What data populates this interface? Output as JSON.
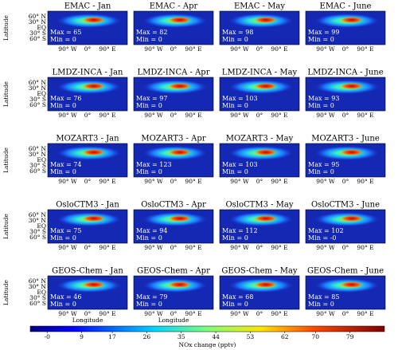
{
  "panels": [
    {
      "title": "EMAC - Jan",
      "max_label": "Max = 65",
      "min_label": "Min = 0"
    },
    {
      "title": "EMAC - Apr",
      "max_label": "Max = 82",
      "min_label": "Min = 0"
    },
    {
      "title": "EMAC - May",
      "max_label": "Max = 98",
      "min_label": "Min = 0"
    },
    {
      "title": "EMAC - June",
      "max_label": "Max = 99",
      "min_label": "Min = 0"
    },
    {
      "title": "LMDZ-INCA - Jan",
      "max_label": "Max = 76",
      "min_label": "Min = 0"
    },
    {
      "title": "LMDZ-INCA - Apr",
      "max_label": "Max = 97",
      "min_label": "Min = 0"
    },
    {
      "title": "LMDZ-INCA - May",
      "max_label": "Max = 103",
      "min_label": "Min = 0"
    },
    {
      "title": "LMDZ-INCA - June",
      "max_label": "Max = 93",
      "min_label": "Min = 0"
    },
    {
      "title": "MOZART3 - Jan",
      "max_label": "Max = 74",
      "min_label": "Min = 0"
    },
    {
      "title": "MOZART3 - Apr",
      "max_label": "Max = 123",
      "min_label": "Min = 0"
    },
    {
      "title": "MOZART3 - May",
      "max_label": "Max = 103",
      "min_label": "Min = 0"
    },
    {
      "title": "MOZART3 - June",
      "max_label": "Max = 95",
      "min_label": "Min = 0"
    },
    {
      "title": "OsloCTM3 - Jan",
      "max_label": "Max = 75",
      "min_label": "Min = 0"
    },
    {
      "title": "OsloCTM3 - Apr",
      "max_label": "Max = 94",
      "min_label": "Min = 0"
    },
    {
      "title": "OsloCTM3 - May",
      "max_label": "Max = 112",
      "min_label": "Min = 0"
    },
    {
      "title": "OsloCTM3 - June",
      "max_label": "Max = 102",
      "min_label": "Min = -0"
    },
    {
      "title": "GEOS-Chem - Jan",
      "max_label": "Max = 46",
      "min_label": "Min = 0"
    },
    {
      "title": "GEOS-Chem - Apr",
      "max_label": "Max = 79",
      "min_label": "Min = 0"
    },
    {
      "title": "GEOS-Chem - May",
      "max_label": "Max = 68",
      "min_label": "Min = 0"
    },
    {
      "title": "GEOS-Chem - June",
      "max_label": "Max = 85",
      "min_label": "Min = 0"
    }
  ],
  "y_axis": {
    "label": "Latitude",
    "ticks": [
      "60° N",
      "30° N",
      "EQ",
      "30° S",
      "60° S"
    ]
  },
  "x_axis": {
    "label": "Longitude",
    "ticks": [
      "90° W",
      "0°",
      "90° E"
    ]
  },
  "colorbar": {
    "label": "NOx change (pptv)",
    "lim": [
      -4.4,
      88
    ],
    "ticks": [
      {
        "value": 0,
        "label": "-0"
      },
      9,
      17,
      26,
      35,
      44,
      53,
      62,
      70,
      79
    ]
  }
}
